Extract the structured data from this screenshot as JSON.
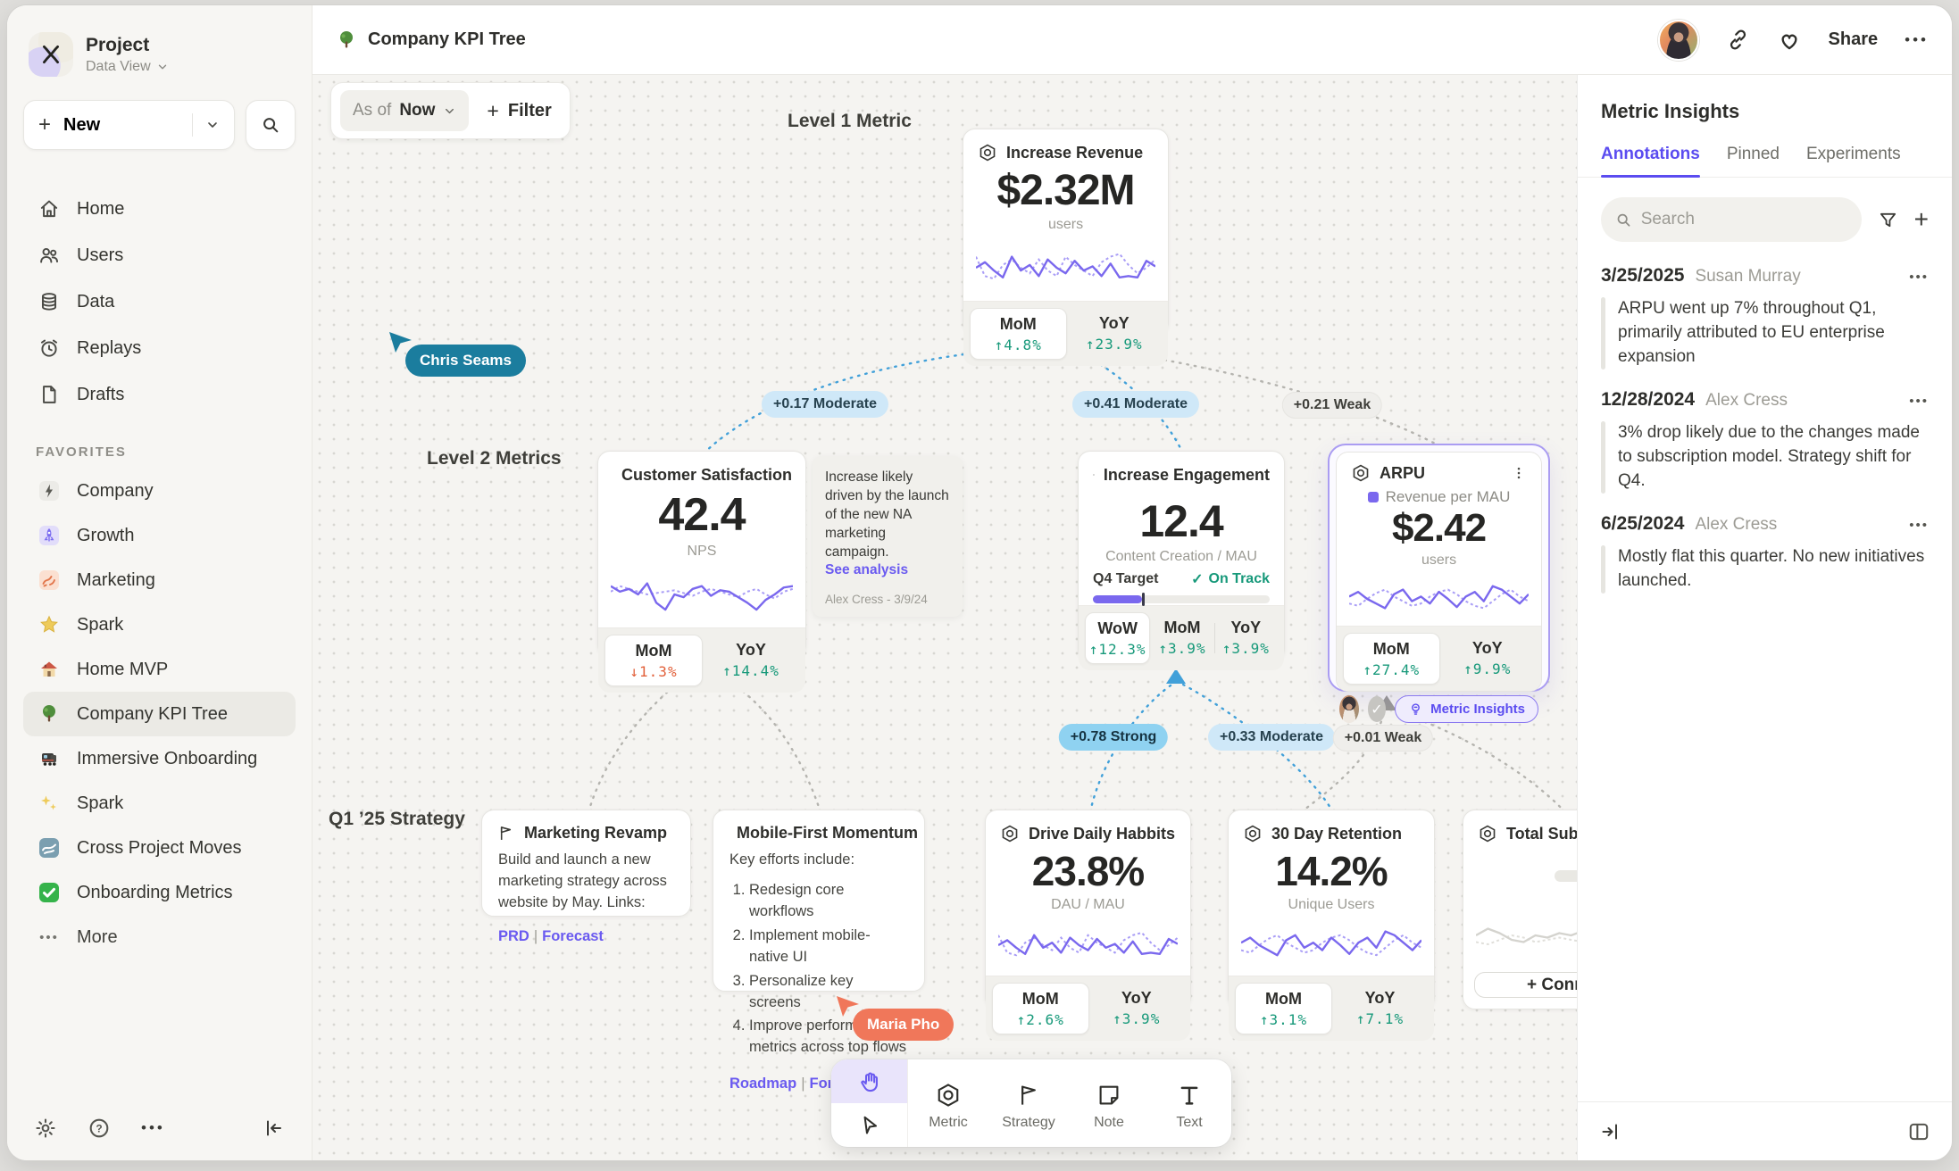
{
  "glyphs": {
    "plus": "+",
    "ellipsis": "•••",
    "check": "✓",
    "question": "?",
    "tool_text": "T"
  },
  "header": {
    "title": "Company KPI Tree",
    "share": "Share"
  },
  "sidebar": {
    "project": {
      "name": "Project",
      "view": "Data View"
    },
    "new_label": "New",
    "nav": [
      {
        "label": "Home"
      },
      {
        "label": "Users"
      },
      {
        "label": "Data"
      },
      {
        "label": "Replays"
      },
      {
        "label": "Drafts"
      }
    ],
    "favorites_label": "FAVORITES",
    "favorites": [
      {
        "label": "Company"
      },
      {
        "label": "Growth"
      },
      {
        "label": "Marketing"
      },
      {
        "label": "Spark"
      },
      {
        "label": "Home MVP"
      },
      {
        "label": "Company KPI Tree"
      },
      {
        "label": "Immersive Onboarding"
      },
      {
        "label": "Spark"
      },
      {
        "label": "Cross Project Moves"
      },
      {
        "label": "Onboarding Metrics"
      }
    ],
    "more_label": "More"
  },
  "canvas": {
    "filter": {
      "as_of": "As of",
      "value": "Now",
      "filter_label": "Filter"
    },
    "levels": {
      "l1": "Level 1 Metric",
      "l2": "Level 2 Metrics",
      "l3": "Q1 ’25 Strategy"
    },
    "link_sep": "|",
    "cursors": {
      "a": "Chris Seams",
      "b": "Maria Pho"
    },
    "edges": [
      "+0.17 Moderate",
      "+0.41 Moderate",
      "+0.21 Weak",
      "+0.78 Strong",
      "+0.33 Moderate",
      "+0.01 Weak"
    ],
    "cards": {
      "revenue": {
        "title": "Increase Revenue",
        "value": "$2.32M",
        "unit": "users",
        "metrics": [
          {
            "label": "MoM",
            "delta": "↑4.8%"
          },
          {
            "label": "YoY",
            "delta": "↑23.9%"
          }
        ]
      },
      "satisfaction": {
        "title": "Customer Satisfaction",
        "value": "42.4",
        "unit": "NPS",
        "metrics": [
          {
            "label": "MoM",
            "delta": "↓1.3%"
          },
          {
            "label": "YoY",
            "delta": "↑14.4%"
          }
        ]
      },
      "note": {
        "text": "Increase likely driven by the launch of the new NA marketing campaign.",
        "link": "See analysis",
        "byline": "Alex Cress - 3/9/24"
      },
      "engagement": {
        "title": "Increase Engagement",
        "value": "12.4",
        "unit": "Content Creation / MAU",
        "target_label": "Q4 Target",
        "status": "On Track",
        "metrics": [
          {
            "label": "WoW",
            "delta": "↑12.3%"
          },
          {
            "label": "MoM",
            "delta": "↑3.9%"
          },
          {
            "label": "YoY",
            "delta": "↑3.9%"
          }
        ]
      },
      "arpu": {
        "title": "ARPU",
        "legend": "Revenue per MAU",
        "value": "$2.42",
        "unit": "users",
        "metrics": [
          {
            "label": "MoM",
            "delta": "↑27.4%"
          },
          {
            "label": "YoY",
            "delta": "↑9.9%"
          }
        ],
        "insights_label": "Metric Insights"
      },
      "marketing": {
        "title": "Marketing Revamp",
        "body": "Build and launch a new marketing strategy across website by May. Links:",
        "links": [
          "PRD",
          "Forecast"
        ]
      },
      "mobile": {
        "title": "Mobile-First Momentum",
        "intro": "Key efforts include:",
        "items": [
          "Redesign core workflows",
          "Implement mobile-native UI",
          "Personalize key screens",
          "Improve performance metrics across top flows"
        ],
        "links": [
          "Roadmap",
          "Forecast"
        ]
      },
      "habits": {
        "title": "Drive Daily Habbits",
        "value": "23.8%",
        "unit": "DAU / MAU",
        "metrics": [
          {
            "label": "MoM",
            "delta": "↑2.6%"
          },
          {
            "label": "YoY",
            "delta": "↑3.9%"
          }
        ]
      },
      "retention": {
        "title": "30 Day Retention",
        "value": "14.2%",
        "unit": "Unique Users",
        "metrics": [
          {
            "label": "MoM",
            "delta": "↑3.1%"
          },
          {
            "label": "YoY",
            "delta": "↑7.1%"
          }
        ]
      },
      "subscriptions": {
        "title": "Total Subscript",
        "connect_label": "+ Connec"
      }
    },
    "toolbar": [
      {
        "label": "Metric"
      },
      {
        "label": "Strategy"
      },
      {
        "label": "Note"
      },
      {
        "label": "Text"
      }
    ]
  },
  "panel": {
    "title": "Metric Insights",
    "tabs": [
      {
        "label": "Annotations"
      },
      {
        "label": "Pinned"
      },
      {
        "label": "Experiments"
      }
    ],
    "search_placeholder": "Search",
    "annotations": [
      {
        "date": "3/25/2025",
        "author": "Susan Murray",
        "text": "ARPU went up 7% throughout Q1, primarily attributed to EU enterprise expansion"
      },
      {
        "date": "12/28/2024",
        "author": "Alex Cress",
        "text": "3% drop likely due to the changes made to subscription model. Strategy shift for Q4."
      },
      {
        "date": "6/25/2024",
        "author": "Alex Cress",
        "text": "Mostly flat this quarter. No new initiatives launched."
      }
    ]
  },
  "colors": {
    "accent_purple": "#6a5af0",
    "green_up": "#17997a",
    "red_down": "#e2603a",
    "edge_blue": "#41a0d9",
    "cursor_teal": "#1b7d9e",
    "cursor_coral": "#f0775a"
  }
}
